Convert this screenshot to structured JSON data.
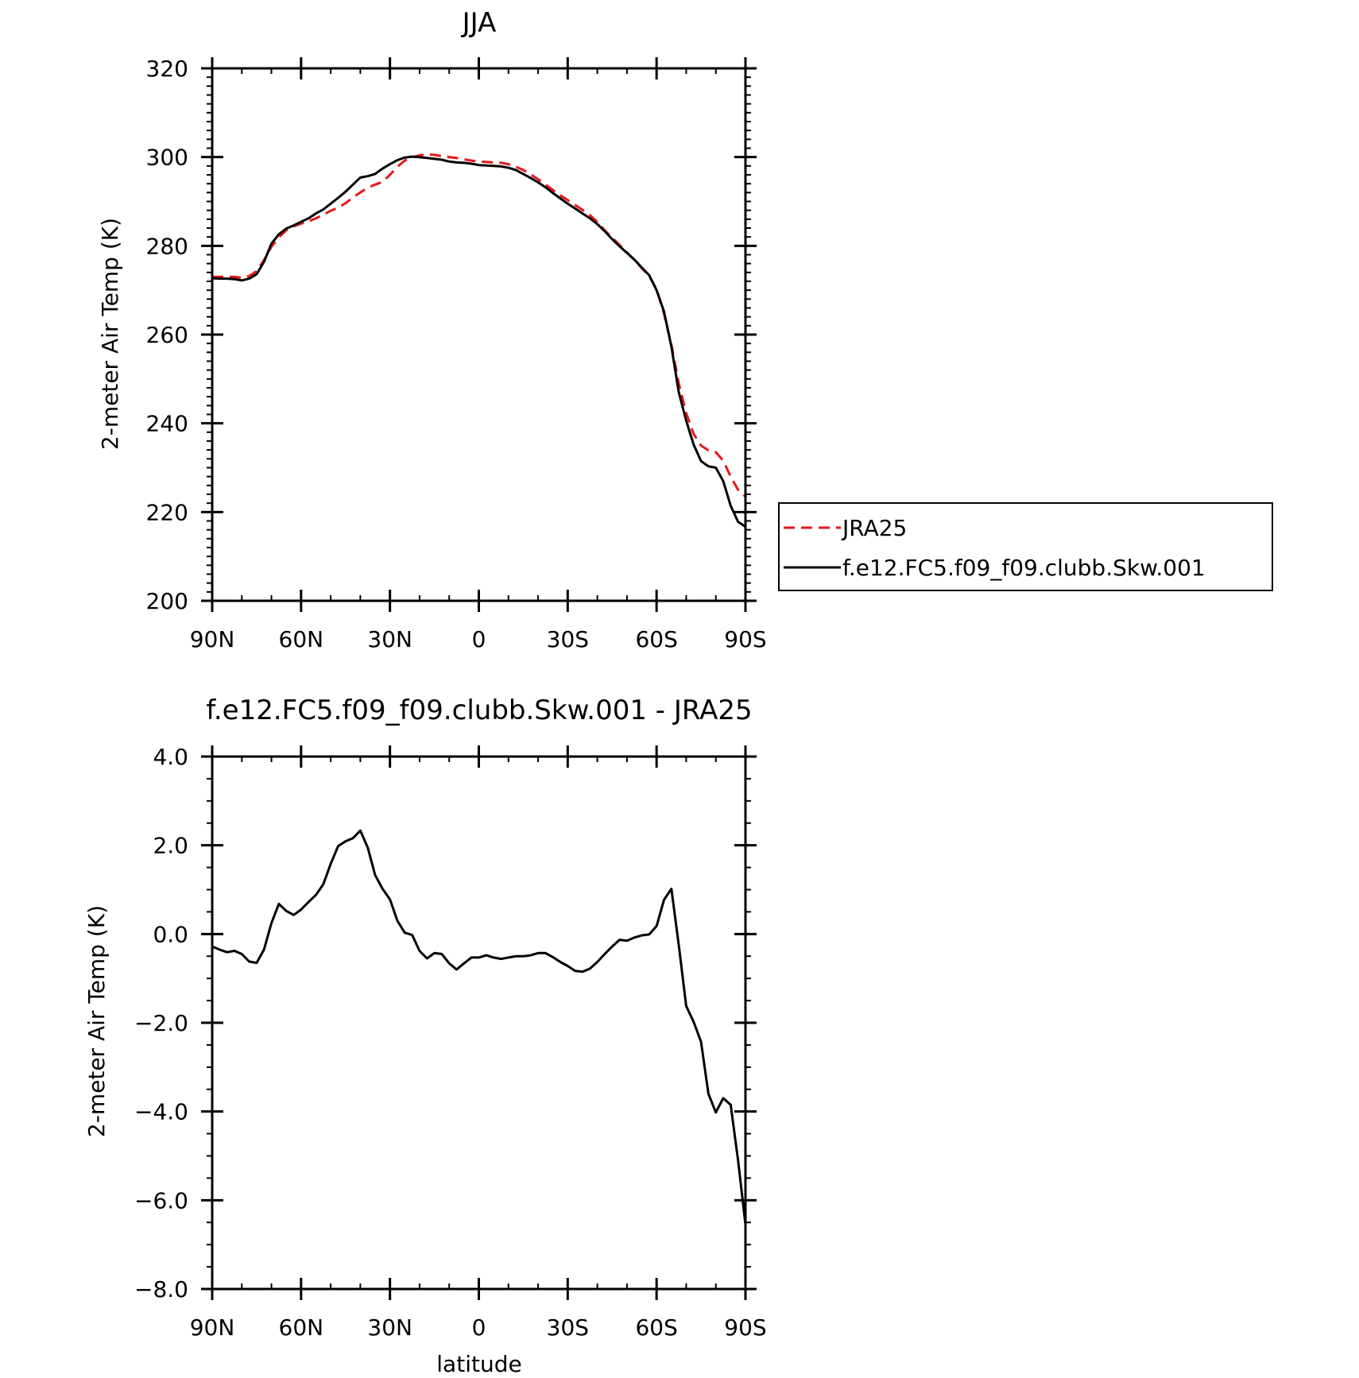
{
  "colors": {
    "model": "#000000",
    "obs": "#e8161b",
    "frame": "#000000"
  },
  "chart_data": [
    {
      "type": "line",
      "title": "JJA",
      "xlabel": "",
      "ylabel": "2-meter Air Temp (K)",
      "xlim": [
        90,
        -90
      ],
      "ylim": [
        200,
        320
      ],
      "xticks": [
        {
          "value": 90,
          "label": "90N"
        },
        {
          "value": 60,
          "label": "60N"
        },
        {
          "value": 30,
          "label": "30N"
        },
        {
          "value": 0,
          "label": "0"
        },
        {
          "value": -30,
          "label": "30S"
        },
        {
          "value": -60,
          "label": "60S"
        },
        {
          "value": -90,
          "label": "90S"
        }
      ],
      "yticks": [
        {
          "value": 200,
          "label": "200"
        },
        {
          "value": 220,
          "label": "220"
        },
        {
          "value": 240,
          "label": "240"
        },
        {
          "value": 260,
          "label": "260"
        },
        {
          "value": 280,
          "label": "280"
        },
        {
          "value": 300,
          "label": "300"
        },
        {
          "value": 320,
          "label": "320"
        }
      ],
      "legend": {
        "position": "right",
        "entries": [
          {
            "name": "JRA25",
            "style": "dashed",
            "color": "#e8161b"
          },
          {
            "name": "f.e12.FC5.f09_f09.clubb.Skw.001",
            "style": "solid",
            "color": "#000000"
          }
        ]
      },
      "series": [
        {
          "name": "JRA25",
          "style": "dashed",
          "color": "#e8161b",
          "x": [
            90,
            87.5,
            85,
            82.5,
            80,
            77.5,
            75,
            72.5,
            70,
            67.5,
            65,
            62.5,
            60,
            57.5,
            55,
            52.5,
            50,
            47.5,
            45,
            42.5,
            40,
            37.5,
            35,
            32.5,
            30,
            27.5,
            25,
            22.5,
            20,
            17.5,
            15,
            12.5,
            10,
            7.5,
            5,
            2.5,
            0,
            -2.5,
            -5,
            -7.5,
            -10,
            -12.5,
            -15,
            -17.5,
            -20,
            -22.5,
            -25,
            -27.5,
            -30,
            -32.5,
            -35,
            -37.5,
            -40,
            -42.5,
            -45,
            -47.5,
            -50,
            -52.5,
            -55,
            -57.5,
            -60,
            -62.5,
            -65,
            -67.5,
            -70,
            -72.5,
            -75,
            -77.5,
            -80,
            -82.5,
            -85,
            -87.5,
            -90
          ],
          "values": [
            273.0,
            273.0,
            273.0,
            273.0,
            272.8,
            273.2,
            274.3,
            276.8,
            279.8,
            281.9,
            283.5,
            284.4,
            285.0,
            285.5,
            286.2,
            287.0,
            287.9,
            288.6,
            289.6,
            290.9,
            292.0,
            293.1,
            293.8,
            294.4,
            296.0,
            297.8,
            299.2,
            300.0,
            300.4,
            300.6,
            300.5,
            300.2,
            300.0,
            299.8,
            299.5,
            299.2,
            299.0,
            298.9,
            298.8,
            298.7,
            298.4,
            297.8,
            297.1,
            296.1,
            295.0,
            293.8,
            292.6,
            291.4,
            290.3,
            289.2,
            288.1,
            286.9,
            285.4,
            283.5,
            281.8,
            280.2,
            278.5,
            276.8,
            275.0,
            273.2,
            270.2,
            264.7,
            257.7,
            249.0,
            242.3,
            237.6,
            235.0,
            233.9,
            233.5,
            231.6,
            228.0,
            225.0,
            223.5
          ]
        },
        {
          "name": "f.e12.FC5.f09_f09.clubb.Skw.001",
          "style": "solid",
          "color": "#000000",
          "x": [
            90,
            87.5,
            85,
            82.5,
            80,
            77.5,
            75,
            72.5,
            70,
            67.5,
            65,
            62.5,
            60,
            57.5,
            55,
            52.5,
            50,
            47.5,
            45,
            42.5,
            40,
            37.5,
            35,
            32.5,
            30,
            27.5,
            25,
            22.5,
            20,
            17.5,
            15,
            12.5,
            10,
            7.5,
            5,
            2.5,
            0,
            -2.5,
            -5,
            -7.5,
            -10,
            -12.5,
            -15,
            -17.5,
            -20,
            -22.5,
            -25,
            -27.5,
            -30,
            -32.5,
            -35,
            -37.5,
            -40,
            -42.5,
            -45,
            -47.5,
            -50,
            -52.5,
            -55,
            -57.5,
            -60,
            -62.5,
            -65,
            -67.5,
            -70,
            -72.5,
            -75,
            -77.5,
            -80,
            -82.5,
            -85,
            -87.5,
            -90
          ],
          "values": [
            272.7,
            272.6,
            272.6,
            272.5,
            272.2,
            272.6,
            273.6,
            276.4,
            280.5,
            282.6,
            283.9,
            284.6,
            285.4,
            286.2,
            287.3,
            288.2,
            289.5,
            290.8,
            292.2,
            293.8,
            295.4,
            295.7,
            296.2,
            297.4,
            298.4,
            299.3,
            299.9,
            300.1,
            300.0,
            299.8,
            299.6,
            299.4,
            299.0,
            298.8,
            298.7,
            298.5,
            298.2,
            298.1,
            298.0,
            297.9,
            297.6,
            297.1,
            296.2,
            295.3,
            294.3,
            293.2,
            291.9,
            290.7,
            289.5,
            288.4,
            287.3,
            286.2,
            284.9,
            283.3,
            281.5,
            279.9,
            278.4,
            276.9,
            275.1,
            273.4,
            270.0,
            265.2,
            257.3,
            247.0,
            240.6,
            235.2,
            231.5,
            230.3,
            230.0,
            227.0,
            221.4,
            217.8,
            216.7
          ]
        }
      ]
    },
    {
      "type": "line",
      "title": "f.e12.FC5.f09_f09.clubb.Skw.001 - JRA25",
      "xlabel": "latitude",
      "ylabel": "2-meter Air Temp (K)",
      "xlim": [
        90,
        -90
      ],
      "ylim": [
        -8,
        4
      ],
      "xticks": [
        {
          "value": 90,
          "label": "90N"
        },
        {
          "value": 60,
          "label": "60N"
        },
        {
          "value": 30,
          "label": "30N"
        },
        {
          "value": 0,
          "label": "0"
        },
        {
          "value": -30,
          "label": "30S"
        },
        {
          "value": -60,
          "label": "60S"
        },
        {
          "value": -90,
          "label": "90S"
        }
      ],
      "yticks": [
        {
          "value": -8,
          "label": "−8.0"
        },
        {
          "value": -6,
          "label": "−6.0"
        },
        {
          "value": -4,
          "label": "−4.0"
        },
        {
          "value": -2,
          "label": "−2.0"
        },
        {
          "value": 0,
          "label": "0.0"
        },
        {
          "value": 2,
          "label": "2.0"
        },
        {
          "value": 4,
          "label": "4.0"
        }
      ],
      "series": [
        {
          "name": "",
          "style": "solid",
          "color": "#000000",
          "x": [
            90,
            87.5,
            85,
            82.5,
            80,
            77.5,
            75,
            72.5,
            70,
            67.5,
            65,
            62.5,
            60,
            57.5,
            55,
            52.5,
            50,
            47.5,
            45,
            42.5,
            40,
            37.5,
            35,
            32.5,
            30,
            27.5,
            25,
            22.5,
            20,
            17.5,
            15,
            12.5,
            10,
            7.5,
            5,
            2.5,
            0,
            -2.5,
            -5,
            -7.5,
            -10,
            -12.5,
            -15,
            -17.5,
            -20,
            -22.5,
            -25,
            -27.5,
            -30,
            -32.5,
            -35,
            -37.5,
            -40,
            -42.5,
            -45,
            -47.5,
            -50,
            -52.5,
            -55,
            -57.5,
            -60,
            -62.5,
            -65,
            -67.5,
            -70,
            -72.5,
            -75,
            -77.5,
            -80,
            -82.5,
            -85,
            -87.5,
            -90
          ],
          "values": [
            -0.28,
            -0.35,
            -0.41,
            -0.38,
            -0.45,
            -0.62,
            -0.65,
            -0.35,
            0.25,
            0.68,
            0.52,
            0.43,
            0.55,
            0.72,
            0.88,
            1.12,
            1.58,
            1.98,
            2.09,
            2.16,
            2.33,
            1.95,
            1.33,
            1.02,
            0.78,
            0.3,
            0.03,
            -0.02,
            -0.38,
            -0.55,
            -0.43,
            -0.45,
            -0.66,
            -0.8,
            -0.66,
            -0.53,
            -0.53,
            -0.48,
            -0.53,
            -0.56,
            -0.53,
            -0.5,
            -0.5,
            -0.48,
            -0.43,
            -0.43,
            -0.52,
            -0.63,
            -0.72,
            -0.83,
            -0.85,
            -0.78,
            -0.63,
            -0.45,
            -0.28,
            -0.13,
            -0.15,
            -0.08,
            -0.03,
            -0.01,
            0.18,
            0.77,
            1.02,
            -0.25,
            -1.62,
            -1.98,
            -2.43,
            -3.6,
            -4.02,
            -3.7,
            -3.85,
            -5.1,
            -6.55
          ]
        }
      ]
    }
  ]
}
